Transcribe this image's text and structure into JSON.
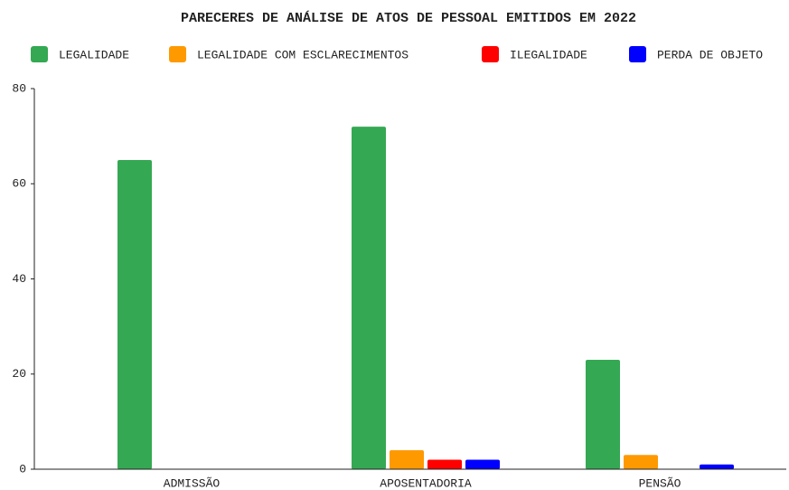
{
  "chart_data": {
    "type": "bar",
    "title": "PARECERES DE ANÁLISE DE ATOS DE PESSOAL EMITIDOS EM 2022",
    "categories": [
      "ADMISSÃO",
      "APOSENTADORIA",
      "PENSÃO"
    ],
    "series": [
      {
        "name": "LEGALIDADE",
        "color": "#34a853",
        "values": [
          65,
          72,
          23
        ]
      },
      {
        "name": "LEGALIDADE COM ESCLARECIMENTOS",
        "color": "#ff9900",
        "values": [
          0,
          4,
          3
        ]
      },
      {
        "name": "ILEGALIDADE",
        "color": "#ff0000",
        "values": [
          0,
          2,
          0
        ]
      },
      {
        "name": "PERDA DE OBJETO",
        "color": "#0000ff",
        "values": [
          0,
          2,
          1
        ]
      }
    ],
    "ylim": [
      0,
      80
    ],
    "yticks": [
      0,
      20,
      40,
      60,
      80
    ],
    "grid": false,
    "legend": "top"
  }
}
